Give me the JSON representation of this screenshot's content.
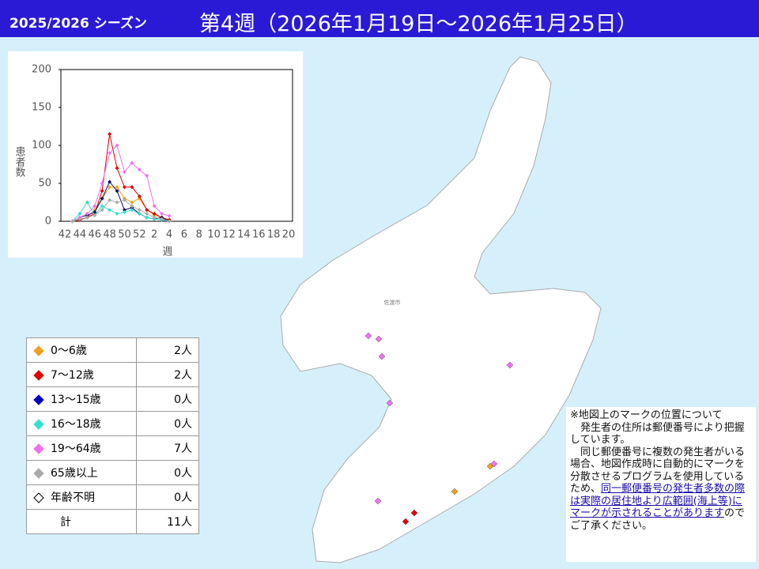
{
  "header": {
    "season": "2025/2026 シーズン",
    "week": "第4週（2026年1月19日～2026年1月25日）"
  },
  "chart_data": {
    "type": "line",
    "y_label": "患者数",
    "x_label": "週",
    "categories": [
      "42",
      null,
      "44",
      null,
      "46",
      null,
      "48",
      null,
      "50",
      null,
      "52",
      null,
      "2",
      null,
      "4",
      null,
      "6",
      null,
      "8",
      null,
      "10",
      null,
      "12",
      null,
      "14",
      null,
      "16",
      null,
      "18",
      null,
      "20"
    ],
    "ylim": [
      0,
      200
    ],
    "yticks": [
      0,
      50,
      100,
      150,
      200
    ],
    "series": [
      {
        "color": "#f0a020",
        "values": [
          null,
          0,
          2,
          5,
          15,
          30,
          45,
          45,
          30,
          25,
          30,
          15,
          8,
          5,
          2,
          null,
          null,
          null,
          null,
          null,
          null,
          null,
          null,
          null,
          null,
          null,
          null,
          null,
          null,
          null,
          null
        ]
      },
      {
        "color": "#e00000",
        "values": [
          null,
          0,
          2,
          5,
          10,
          40,
          115,
          70,
          45,
          45,
          33,
          15,
          10,
          5,
          2,
          null,
          null,
          null,
          null,
          null,
          null,
          null,
          null,
          null,
          null,
          null,
          null,
          null,
          null,
          null,
          null
        ]
      },
      {
        "color": "#101060",
        "values": [
          null,
          0,
          5,
          8,
          12,
          30,
          52,
          40,
          15,
          18,
          10,
          5,
          3,
          5,
          0,
          null,
          null,
          null,
          null,
          null,
          null,
          null,
          null,
          null,
          null,
          null,
          null,
          null,
          null,
          null,
          null
        ]
      },
      {
        "color": "#30e0d0",
        "values": [
          null,
          0,
          10,
          25,
          8,
          20,
          15,
          10,
          12,
          15,
          10,
          5,
          3,
          2,
          0,
          null,
          null,
          null,
          null,
          null,
          null,
          null,
          null,
          null,
          null,
          null,
          null,
          null,
          null,
          null,
          null
        ]
      },
      {
        "color": "#f070f0",
        "values": [
          null,
          0,
          5,
          10,
          20,
          50,
          90,
          100,
          65,
          77,
          68,
          60,
          20,
          10,
          7,
          null,
          null,
          null,
          null,
          null,
          null,
          null,
          null,
          null,
          null,
          null,
          null,
          null,
          null,
          null,
          null
        ]
      },
      {
        "color": "#aaaaaa",
        "values": [
          null,
          0,
          3,
          5,
          8,
          15,
          28,
          25,
          28,
          20,
          15,
          10,
          5,
          3,
          0,
          null,
          null,
          null,
          null,
          null,
          null,
          null,
          null,
          null,
          null,
          null,
          null,
          null,
          null,
          null,
          null
        ]
      }
    ]
  },
  "table": {
    "rows": [
      {
        "label": "0～6歳",
        "count": "2人",
        "color": "#f0a020"
      },
      {
        "label": "7～12歳",
        "count": "2人",
        "color": "#e00000"
      },
      {
        "label": "13～15歳",
        "count": "0人",
        "color": "#0000c0"
      },
      {
        "label": "16～18歳",
        "count": "0人",
        "color": "#30e0d0"
      },
      {
        "label": "19～64歳",
        "count": "7人",
        "color": "#f070f0"
      },
      {
        "label": "65歳以上",
        "count": "0人",
        "color": "#aaaaaa"
      },
      {
        "label": "年齢不明",
        "count": "0人",
        "color": "#ffffff"
      },
      {
        "label": "計",
        "count": "11人"
      }
    ]
  },
  "map": {
    "label": "佐渡市"
  },
  "note": {
    "title": "※地図上のマークの位置について",
    "p1": "　発生者の住所は郵便番号により把握しています。",
    "p2": "　同じ郵便番号に複数の発生者がいる場合、地図作成時に自動的にマークを分散させるプログラムを使用しているため、",
    "link": "同一郵便番号の発生者多数の際は実際の居住地より広範囲(海上等)にマークが示されることがあります",
    "tail": "のでご了承ください。"
  }
}
